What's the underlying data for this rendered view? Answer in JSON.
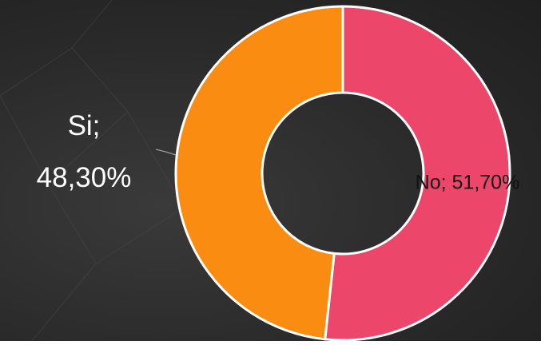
{
  "chart_data": {
    "type": "donut",
    "values": [
      51.7,
      48.3
    ],
    "value_labels": [
      "No; 51,70%",
      "Si; 48,30%"
    ],
    "colors": [
      "#ec476b",
      "#fb8c12"
    ],
    "label_colors": [
      "#111111",
      "#ffffff"
    ]
  }
}
